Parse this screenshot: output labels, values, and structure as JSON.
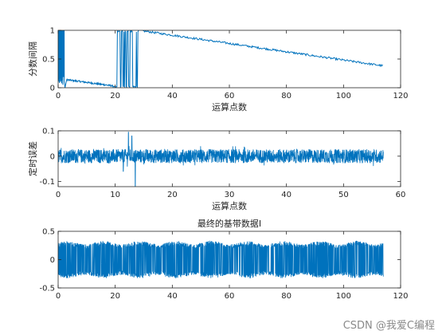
{
  "watermark": "CSDN @我爱C编程",
  "series_color": "#0072bd",
  "chart_data": [
    {
      "type": "line",
      "title": "",
      "xlabel": "运算点数",
      "ylabel": "分数间隔",
      "xlim": [
        0,
        120
      ],
      "ylim": [
        0,
        1
      ],
      "xticks": [
        0,
        20,
        40,
        60,
        80,
        100,
        120
      ],
      "yticks": [
        0,
        0.5,
        1
      ],
      "xtick_labels": [
        "0",
        "20",
        "40",
        "60",
        "80",
        "100",
        "120"
      ],
      "ytick_labels": [
        "0",
        "0.5",
        "1"
      ],
      "grid": false,
      "x_extent": [
        0,
        114
      ],
      "description_points": [
        {
          "x": 0,
          "y": 0.5
        },
        {
          "x": 2.5,
          "y": 0.0
        },
        {
          "x": 3,
          "y": 0.15
        },
        {
          "x": 20,
          "y": 0.02
        },
        {
          "x": 28,
          "y": 0.0
        },
        {
          "x": 28.2,
          "y": 1.0
        },
        {
          "x": 114,
          "y": 0.37
        }
      ]
    },
    {
      "type": "line",
      "title": "",
      "xlabel": "运算点数",
      "ylabel": "定时误差",
      "xlim": [
        0,
        60
      ],
      "ylim": [
        -0.12,
        0.1
      ],
      "xticks": [
        0,
        10,
        20,
        30,
        40,
        50,
        60
      ],
      "yticks": [
        -0.1,
        0,
        0.1
      ],
      "xtick_labels": [
        "0",
        "10",
        "20",
        "30",
        "40",
        "50",
        "60"
      ],
      "ytick_labels": [
        "-0.1",
        "0",
        "0.1"
      ],
      "grid": false,
      "x_extent": [
        0,
        57
      ],
      "noise_band": [
        -0.03,
        0.03
      ],
      "spikes": [
        {
          "x": 12.3,
          "y": 0.095
        },
        {
          "x": 13.5,
          "y": -0.12
        },
        {
          "x": 12.9,
          "y": 0.08
        },
        {
          "x": 11.4,
          "y": -0.06
        }
      ]
    },
    {
      "type": "line",
      "title": "最终的基带数据I",
      "xlabel": "",
      "ylabel": "",
      "xlim": [
        0,
        120
      ],
      "ylim": [
        -0.5,
        0.5
      ],
      "xticks": [
        0,
        20,
        40,
        60,
        80,
        100,
        120
      ],
      "yticks": [
        -0.5,
        0,
        0.5
      ],
      "xtick_labels": [
        "0",
        "20",
        "40",
        "60",
        "80",
        "100",
        "120"
      ],
      "ytick_labels": [
        "-0.5",
        "0",
        "0.5"
      ],
      "grid": false,
      "x_extent": [
        0,
        114
      ],
      "envelope_range": [
        0.27,
        0.33
      ],
      "envelope_cycles": 9
    }
  ]
}
